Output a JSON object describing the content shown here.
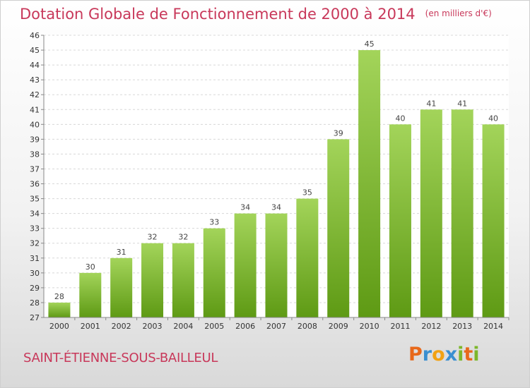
{
  "header": {
    "title": "Dotation Globale de Fonctionnement de 2000 à 2014",
    "unit": "(en milliers d'€)"
  },
  "footer": {
    "commune": "SAINT-ÉTIENNE-SOUS-BAILLEUL",
    "logo": {
      "letters": [
        "P",
        "r",
        "o",
        "x",
        "i",
        "t",
        "i"
      ],
      "colors": [
        "#e8681a",
        "#3a8fd0",
        "#f2a213",
        "#3a8fd0",
        "#7cb72a",
        "#e8681a",
        "#7cb72a"
      ]
    }
  },
  "chart_data": {
    "type": "bar",
    "title": "Dotation Globale de Fonctionnement de 2000 à 2014",
    "subtitle": "(en milliers d'€)",
    "xlabel": "",
    "ylabel": "",
    "categories": [
      "2000",
      "2001",
      "2002",
      "2003",
      "2004",
      "2005",
      "2006",
      "2007",
      "2008",
      "2009",
      "2010",
      "2011",
      "2012",
      "2013",
      "2014"
    ],
    "values": [
      28,
      30,
      31,
      32,
      32,
      33,
      34,
      34,
      35,
      39,
      45,
      40,
      41,
      41,
      40
    ],
    "data_labels": [
      "28",
      "30",
      "31",
      "32",
      "32",
      "33",
      "34",
      "34",
      "35",
      "39",
      "45",
      "40",
      "41",
      "41",
      "40"
    ],
    "ylim": [
      27,
      46
    ],
    "yticks": [
      27,
      28,
      29,
      30,
      31,
      32,
      33,
      34,
      35,
      36,
      37,
      38,
      39,
      40,
      41,
      42,
      43,
      44,
      45,
      46
    ],
    "grid": true,
    "bar_color_top": "#a3d45a",
    "bar_color_bottom": "#5e9a14"
  }
}
